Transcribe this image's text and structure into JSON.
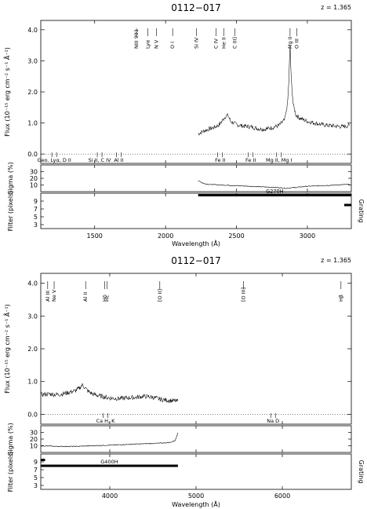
{
  "chart_data": [
    {
      "type": "line",
      "title": "0112−017",
      "redshift_label": "z = 1.365",
      "xlabel": "Wavelength (Å)",
      "ylabel": "Flux (10⁻¹⁵ erg cm⁻² s⁻¹ Å⁻¹)",
      "sigma_label": "Sigma (%)",
      "filter_label": "Filter (pixels)",
      "grating_label": "Grating",
      "xlim": [
        1120,
        3310
      ],
      "ylim": [
        -0.3,
        4.3
      ],
      "xticks": [
        1500,
        2000,
        2500,
        3000
      ],
      "yticks": [
        0.0,
        1.0,
        2.0,
        3.0,
        4.0
      ],
      "sigma_ylim": [
        0,
        40
      ],
      "sigma_ticks": [
        10,
        20,
        30
      ],
      "filter_ylim": [
        2,
        11
      ],
      "filter_ticks": [
        3,
        5,
        7,
        9
      ],
      "emission_lines": [
        {
          "label": "NIII 991",
          "x": 1795
        },
        {
          "label": "Lyα",
          "x": 1875
        },
        {
          "label": "N V",
          "x": 1935
        },
        {
          "label": "O I",
          "x": 2050
        },
        {
          "label": "Si IV",
          "x": 2217
        },
        {
          "label": "C IV",
          "x": 2355
        },
        {
          "label": "He II",
          "x": 2410
        },
        {
          "label": "C III]",
          "x": 2490
        },
        {
          "label": "Mg II",
          "x": 2878
        },
        {
          "label": "O III",
          "x": 2925
        }
      ],
      "absorption_labels": [
        {
          "label": "Geo. Lyα, D II",
          "x": 1215
        },
        {
          "label": "Si II, C IV",
          "x": 1535
        },
        {
          "label": "Al II",
          "x": 1670
        },
        {
          "label": "Fe II",
          "x": 2385
        },
        {
          "label": "Fe II",
          "x": 2600
        },
        {
          "label": "Mg II, Mg I",
          "x": 2800
        }
      ],
      "series": [
        {
          "x": [
            2230,
            2260,
            2300,
            2340,
            2380,
            2420,
            2440,
            2460,
            2500,
            2550,
            2600,
            2650,
            2700,
            2750,
            2800,
            2840,
            2860,
            2870,
            2878,
            2885,
            2900,
            2920,
            2950,
            3000,
            3050,
            3100,
            3150,
            3200,
            3250,
            3300
          ],
          "values": [
            0.65,
            0.72,
            0.8,
            0.85,
            0.95,
            1.2,
            1.25,
            1.05,
            0.95,
            0.9,
            0.88,
            0.82,
            0.8,
            0.85,
            0.92,
            1.1,
            1.6,
            2.4,
            3.6,
            2.5,
            1.6,
            1.25,
            1.15,
            1.05,
            1.0,
            0.95,
            0.92,
            0.9,
            0.88,
            0.92
          ]
        }
      ],
      "sigma": {
        "x": [
          2230,
          2260,
          2300,
          2400,
          2500,
          2600,
          2700,
          2800,
          2850,
          2900,
          3000,
          3100,
          3200,
          3300
        ],
        "values": [
          17,
          13,
          11,
          10,
          9,
          8,
          7,
          6,
          5,
          6,
          8,
          9,
          10,
          11
        ]
      },
      "gratings": [
        {
          "name": "G270H",
          "range": [
            2230,
            3310
          ],
          "level": 10.5
        },
        {
          "name": "",
          "range": [
            3260,
            3310
          ],
          "level": 8
        }
      ]
    },
    {
      "type": "line",
      "title": "0112−017",
      "redshift_label": "z = 1.365",
      "xlabel": "Wavelength (Å)",
      "ylabel": "Flux (10⁻¹⁵ erg cm⁻² s⁻¹ Å⁻¹)",
      "sigma_label": "Sigma (%)",
      "filter_label": "Filter (pixels)",
      "grating_label": "Grating",
      "xlim": [
        3200,
        6800
      ],
      "ylim": [
        -0.3,
        4.3
      ],
      "xticks": [
        4000,
        5000,
        6000
      ],
      "yticks": [
        0.0,
        1.0,
        2.0,
        3.0,
        4.0
      ],
      "sigma_ylim": [
        0,
        40
      ],
      "sigma_ticks": [
        10,
        20,
        30
      ],
      "filter_ylim": [
        2,
        11
      ],
      "filter_ticks": [
        3,
        5,
        7,
        9
      ],
      "emission_lines": [
        {
          "label": "Al III",
          "x": 3280
        },
        {
          "label": "Ne V",
          "x": 3355
        },
        {
          "label": "Al II",
          "x": 3720
        },
        {
          "label": "Hδ",
          "x": 3940
        },
        {
          "label": "Hε",
          "x": 3970
        },
        {
          "label": "[O II]",
          "x": 4580
        },
        {
          "label": "[O III]",
          "x": 5550
        },
        {
          "label": "Hβ",
          "x": 6680
        }
      ],
      "absorption_labels": [
        {
          "label": "Ca H, K",
          "x": 3950
        },
        {
          "label": "Na D",
          "x": 5893
        }
      ],
      "series": [
        {
          "x": [
            3200,
            3300,
            3400,
            3500,
            3600,
            3650,
            3680,
            3700,
            3750,
            3800,
            3900,
            4000,
            4100,
            4200,
            4300,
            4400,
            4500,
            4600,
            4700,
            4790
          ],
          "values": [
            0.6,
            0.62,
            0.6,
            0.65,
            0.72,
            0.8,
            0.9,
            0.85,
            0.7,
            0.62,
            0.55,
            0.5,
            0.48,
            0.5,
            0.52,
            0.55,
            0.52,
            0.45,
            0.42,
            0.4
          ]
        }
      ],
      "sigma": {
        "x": [
          3200,
          3400,
          3600,
          3800,
          4000,
          4200,
          4400,
          4600,
          4700,
          4760,
          4790
        ],
        "values": [
          10,
          9,
          9,
          10,
          11,
          12,
          13,
          14,
          15,
          18,
          30
        ]
      },
      "gratings": [
        {
          "name": "G400H",
          "range": [
            3200,
            4790
          ],
          "level": 8
        },
        {
          "name": "",
          "range": [
            3200,
            3250
          ],
          "level": 9.5
        }
      ]
    }
  ]
}
